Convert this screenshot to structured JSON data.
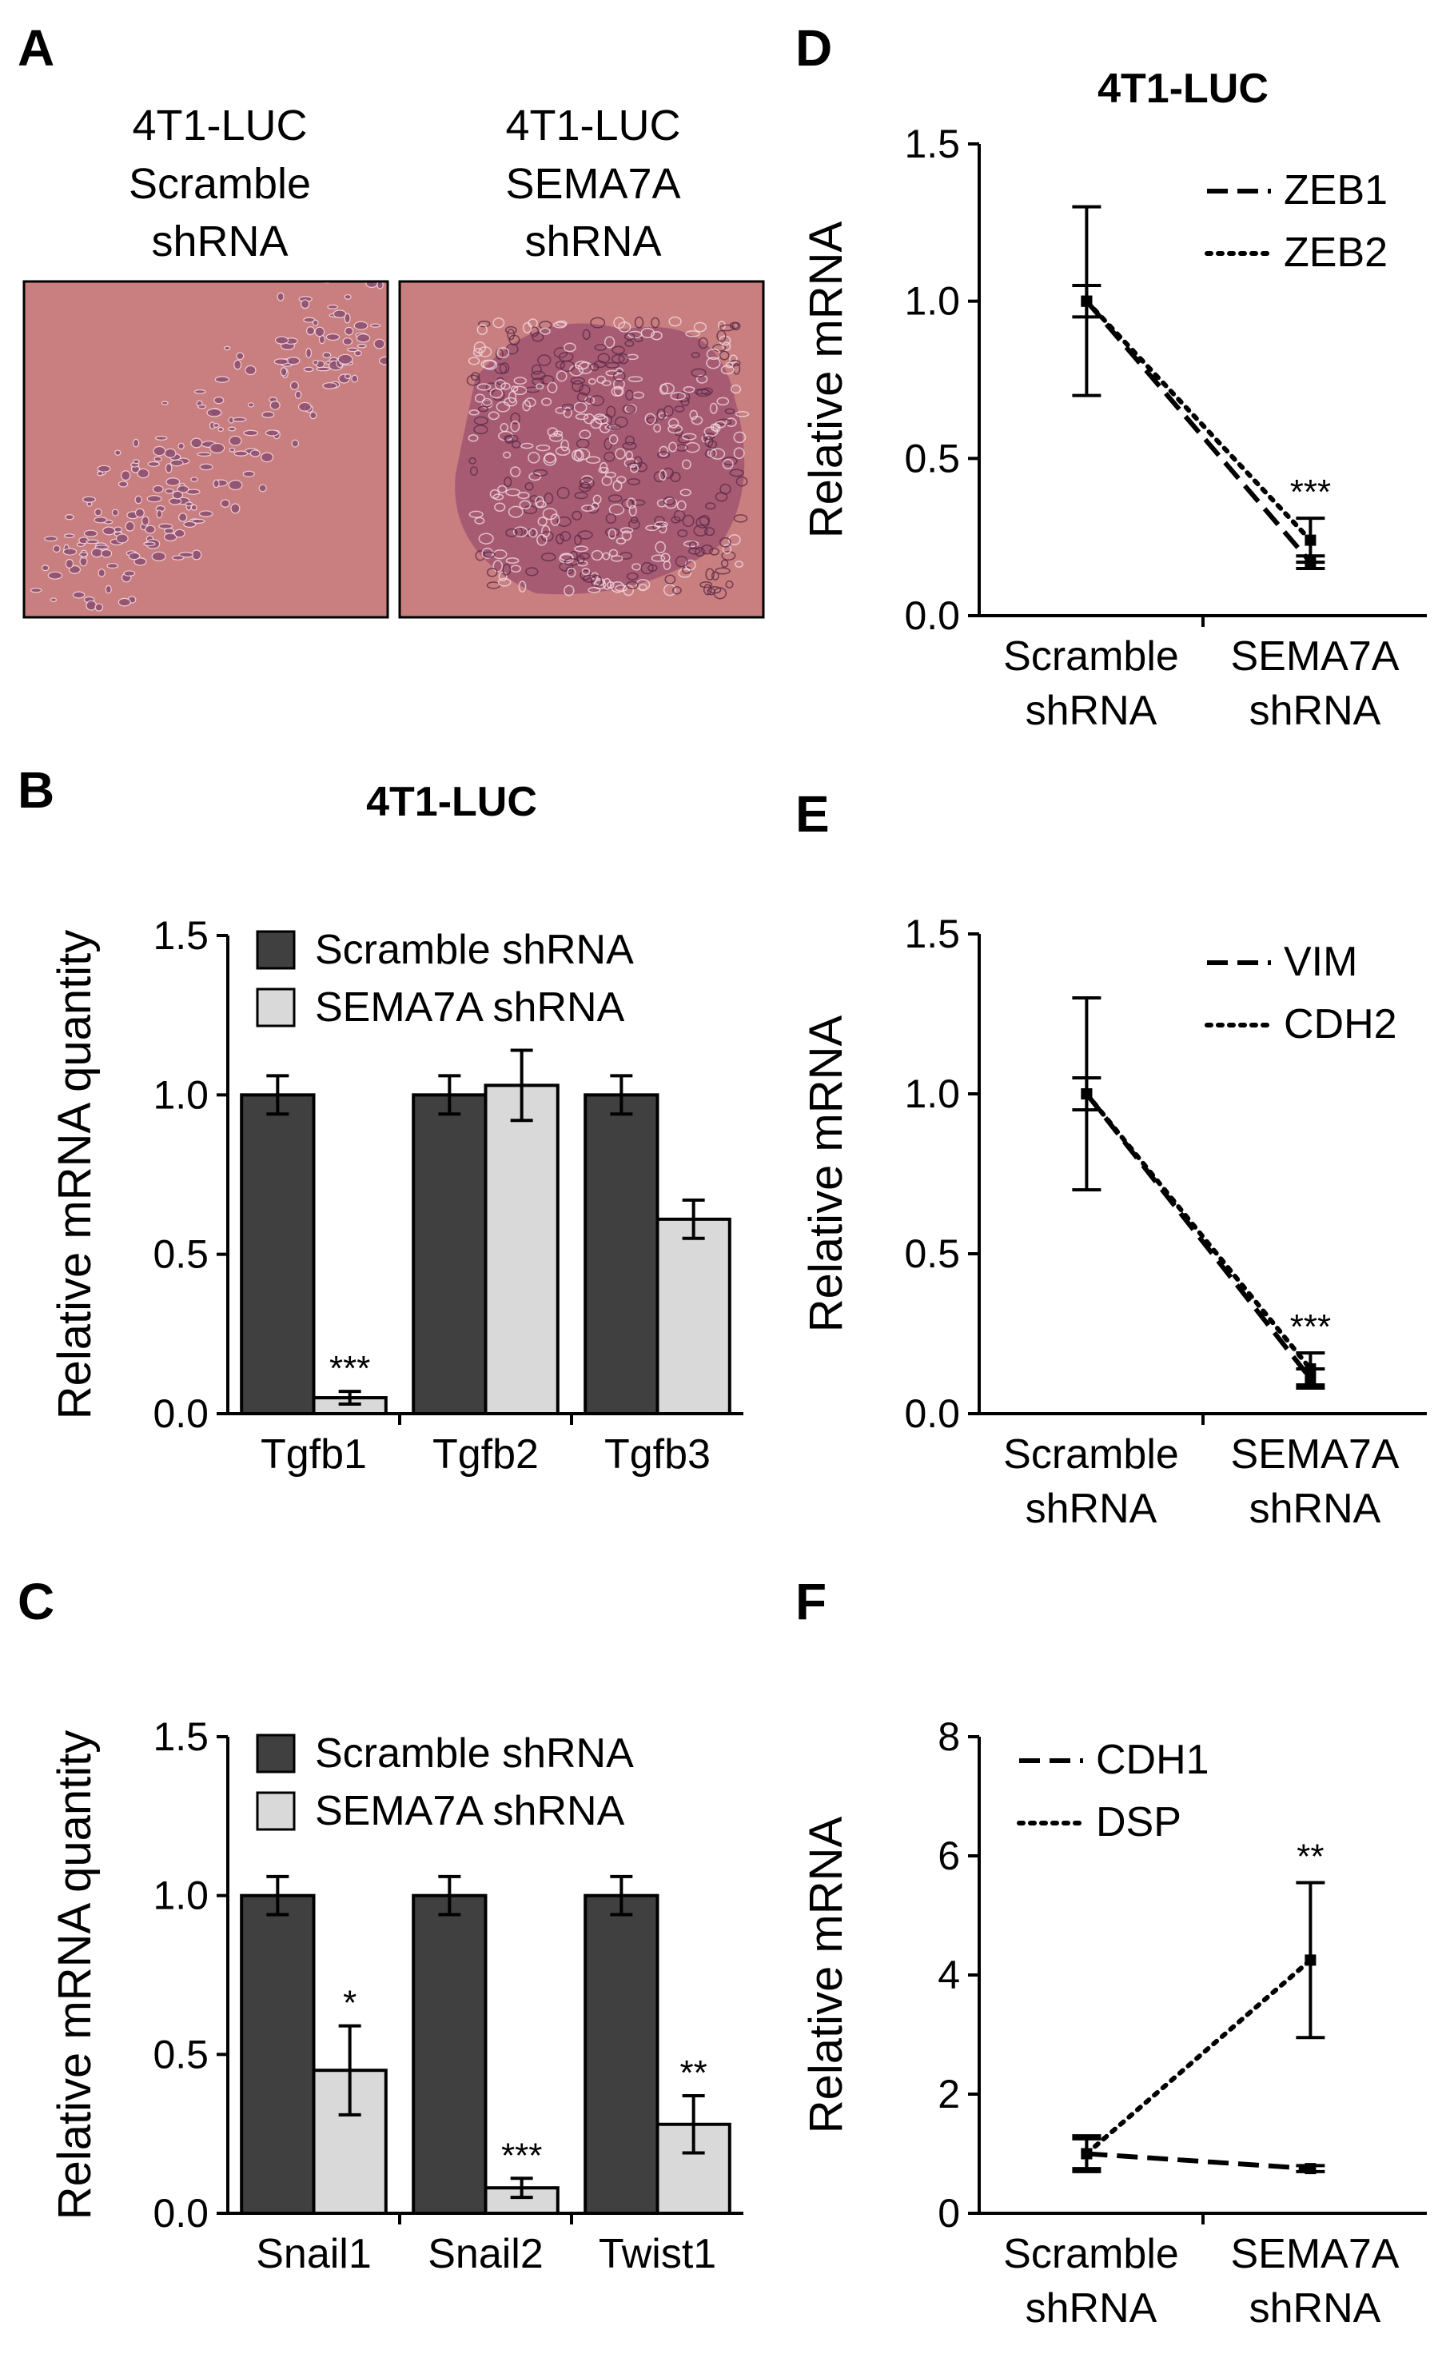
{
  "panels": {
    "A": {
      "letter": "A",
      "images": [
        {
          "caption": [
            "4T1-LUC",
            "Scramble",
            "shRNA"
          ],
          "bg": "#c97f7f"
        },
        {
          "caption": [
            "4T1-LUC",
            "SEMA7A",
            "shRNA"
          ],
          "bg": "#c97f7f"
        }
      ]
    }
  },
  "colors": {
    "dark_bar": "#404040",
    "light_bar": "#d9d9d9",
    "axis": "#000000"
  },
  "chart_data": [
    {
      "panel": "B",
      "type": "bar",
      "title": "4T1-LUC",
      "ylabel": "Relative mRNA quantity",
      "ylim": [
        0,
        1.5
      ],
      "yticks": [
        "0.0",
        "0.5",
        "1.0",
        "1.5"
      ],
      "categories": [
        "Tgfb1",
        "Tgfb2",
        "Tgfb3"
      ],
      "legend_position": "top-left",
      "series": [
        {
          "name": "Scramble shRNA",
          "values": [
            1.0,
            1.0,
            1.0
          ],
          "errors": [
            0.06,
            0.06,
            0.06
          ]
        },
        {
          "name": "SEMA7A shRNA",
          "values": [
            0.05,
            1.03,
            0.61
          ],
          "errors": [
            0.02,
            0.11,
            0.06
          ]
        }
      ],
      "significance": [
        "***",
        "",
        ""
      ]
    },
    {
      "panel": "C",
      "type": "bar",
      "title": "",
      "ylabel": "Relative mRNA quantity",
      "ylim": [
        0,
        1.5
      ],
      "yticks": [
        "0.0",
        "0.5",
        "1.0",
        "1.5"
      ],
      "categories": [
        "Snail1",
        "Snail2",
        "Twist1"
      ],
      "legend_position": "top-left",
      "series": [
        {
          "name": "Scramble shRNA",
          "values": [
            1.0,
            1.0,
            1.0
          ],
          "errors": [
            0.06,
            0.06,
            0.06
          ]
        },
        {
          "name": "SEMA7A shRNA",
          "values": [
            0.45,
            0.08,
            0.28
          ],
          "errors": [
            0.14,
            0.03,
            0.09
          ]
        }
      ],
      "significance": [
        "*",
        "***",
        "**"
      ]
    },
    {
      "panel": "D",
      "type": "line",
      "title": "4T1-LUC",
      "ylabel": "Relative mRNA",
      "ylim": [
        0,
        1.5
      ],
      "yticks": [
        "0.0",
        "0.5",
        "1.0",
        "1.5"
      ],
      "categories": [
        "Scramble shRNA",
        "SEMA7A shRNA"
      ],
      "legend_position": "top-right",
      "series": [
        {
          "name": "ZEB1",
          "style": "dashed",
          "values": [
            1.0,
            0.17
          ],
          "errors": [
            0.3,
            0.02
          ]
        },
        {
          "name": "ZEB2",
          "style": "dotted",
          "values": [
            1.0,
            0.24
          ],
          "errors": [
            0.05,
            0.07
          ]
        }
      ],
      "significance": [
        "",
        "***"
      ]
    },
    {
      "panel": "E",
      "type": "line",
      "title": "",
      "ylabel": "Relative mRNA",
      "ylim": [
        0,
        1.5
      ],
      "yticks": [
        "0.0",
        "0.5",
        "1.0",
        "1.5"
      ],
      "categories": [
        "Scramble shRNA",
        "SEMA7A shRNA"
      ],
      "legend_position": "top-right",
      "series": [
        {
          "name": "VIM",
          "style": "dashed",
          "values": [
            1.0,
            0.11
          ],
          "errors": [
            0.3,
            0.03
          ]
        },
        {
          "name": "CDH2",
          "style": "dotted",
          "values": [
            1.0,
            0.14
          ],
          "errors": [
            0.05,
            0.05
          ]
        }
      ],
      "significance": [
        "",
        "***"
      ]
    },
    {
      "panel": "F",
      "type": "line",
      "title": "",
      "ylabel": "Relative mRNA",
      "ylim": [
        0,
        8
      ],
      "yticks": [
        "0",
        "2",
        "4",
        "6",
        "8"
      ],
      "categories": [
        "Scramble shRNA",
        "SEMA7A shRNA"
      ],
      "legend_position": "top-left",
      "series": [
        {
          "name": "CDH1",
          "style": "dashed",
          "values": [
            1.0,
            0.75
          ],
          "errors": [
            0.25,
            0.05
          ]
        },
        {
          "name": "DSP",
          "style": "dotted",
          "values": [
            1.0,
            4.25
          ],
          "errors": [
            0.3,
            1.3
          ]
        }
      ],
      "significance": [
        "",
        "**"
      ]
    }
  ]
}
